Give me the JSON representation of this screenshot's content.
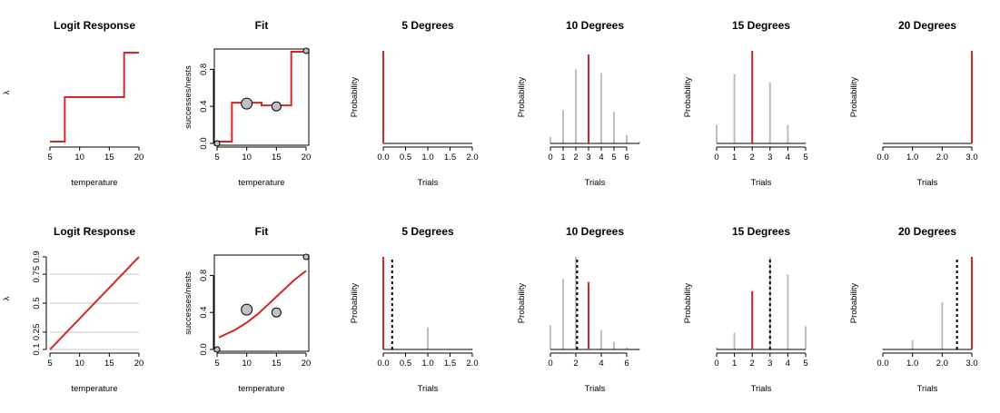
{
  "colors": {
    "highlight": "#d62728",
    "bars": "#bebebe",
    "point_fill": "#c0c0c0",
    "grid": "#c8c8c8",
    "axis": "#000000"
  },
  "chart_data": [
    {
      "type": "line",
      "variant": "step",
      "title": "Logit Response",
      "xlabel": "temperature",
      "ylabel": "",
      "stray_ylabel": "λ",
      "xlim": [
        5,
        20
      ],
      "ylim": [
        0,
        1
      ],
      "xticks": [
        "5",
        "10",
        "15",
        "20"
      ],
      "yticks": [],
      "x": [
        5,
        7.5,
        7.5,
        17.5,
        17.5,
        20
      ],
      "y": [
        0.02,
        0.02,
        0.5,
        0.5,
        0.98,
        0.98
      ]
    },
    {
      "type": "scatter",
      "variant": "fit-step",
      "title": "Fit",
      "xlabel": "temperature",
      "ylabel": "successes/nests",
      "xlim": [
        5,
        20
      ],
      "ylim": [
        0,
        1
      ],
      "xticks": [
        "5",
        "10",
        "15",
        "20"
      ],
      "yticks": [
        "0.0",
        "0.4",
        "0.8"
      ],
      "ytick_values": [
        0,
        0.4,
        0.8
      ],
      "points": [
        {
          "x": 5,
          "y": 0,
          "r": 3
        },
        {
          "x": 10,
          "y": 0.43,
          "r": 6
        },
        {
          "x": 15,
          "y": 0.4,
          "r": 5
        },
        {
          "x": 20,
          "y": 1,
          "r": 3
        }
      ],
      "line_x": [
        5,
        7.5,
        7.5,
        12.5,
        12.5,
        17.5,
        17.5,
        20
      ],
      "line_y": [
        0.02,
        0.02,
        0.44,
        0.44,
        0.41,
        0.41,
        0.99,
        0.99
      ]
    },
    {
      "type": "bar",
      "variant": "pmf",
      "title": "5 Degrees",
      "xlabel": "Trials",
      "ylabel": "Probability",
      "xlim": [
        0,
        2
      ],
      "ylim": [
        0,
        1
      ],
      "xticks": [
        "0.0",
        "0.5",
        "1.0",
        "1.5",
        "2.0"
      ],
      "xtick_values": [
        0,
        0.5,
        1,
        1.5,
        2
      ],
      "x": [],
      "values": [],
      "red_x": 0,
      "red_height": 1,
      "dashed_x": null
    },
    {
      "type": "bar",
      "variant": "pmf",
      "title": "10 Degrees",
      "xlabel": "Trials",
      "ylabel": "Probability",
      "xlim": [
        0,
        7
      ],
      "ylim": [
        0,
        1
      ],
      "xticks": [
        "0",
        "1",
        "2",
        "3",
        "4",
        "5",
        "6"
      ],
      "xtick_values": [
        0,
        1,
        2,
        3,
        4,
        5,
        6
      ],
      "x": [
        0,
        1,
        2,
        3,
        4,
        5,
        6,
        7
      ],
      "values": [
        0.07,
        0.36,
        0.8,
        0.96,
        0.76,
        0.34,
        0.09,
        0.02
      ],
      "red_x": 3,
      "red_height": 0.96,
      "dashed_x": null
    },
    {
      "type": "bar",
      "variant": "pmf",
      "title": "15 Degrees",
      "xlabel": "Trials",
      "ylabel": "Probability",
      "xlim": [
        0,
        5
      ],
      "ylim": [
        0,
        1
      ],
      "xticks": [
        "0",
        "1",
        "2",
        "3",
        "4",
        "5"
      ],
      "xtick_values": [
        0,
        1,
        2,
        3,
        4,
        5
      ],
      "x": [
        0,
        1,
        2,
        3,
        4,
        5
      ],
      "values": [
        0.2,
        0.75,
        1,
        0.66,
        0.2,
        0.01
      ],
      "red_x": 2,
      "red_height": 1,
      "dashed_x": null
    },
    {
      "type": "bar",
      "variant": "pmf",
      "title": "20 Degrees",
      "xlabel": "Trials",
      "ylabel": "Probability",
      "xlim": [
        0,
        3
      ],
      "ylim": [
        0,
        1
      ],
      "xticks": [
        "0.0",
        "1.0",
        "2.0",
        "3.0"
      ],
      "xtick_values": [
        0,
        1,
        2,
        3
      ],
      "x": [],
      "values": [],
      "red_x": 3,
      "red_height": 1,
      "dashed_x": null
    },
    {
      "type": "line",
      "variant": "linear",
      "title": "Logit Response",
      "xlabel": "temperature",
      "ylabel": "",
      "stray_ylabel": "λ",
      "xlim": [
        5,
        20
      ],
      "ylim": [
        0.1,
        0.9
      ],
      "xticks": [
        "5",
        "10",
        "15",
        "20"
      ],
      "yticks": [
        "0.1",
        "0.25",
        "0.5",
        "0.75",
        "0.9"
      ],
      "ytick_values": [
        0.1,
        0.25,
        0.5,
        0.75,
        0.9
      ],
      "ygrid": [
        0.1,
        0.25,
        0.5,
        0.75
      ],
      "x": [
        5,
        20
      ],
      "y": [
        0.1,
        0.9
      ]
    },
    {
      "type": "scatter",
      "variant": "fit-curve",
      "title": "Fit",
      "xlabel": "temperature",
      "ylabel": "successes/nests",
      "xlim": [
        5,
        20
      ],
      "ylim": [
        0,
        1
      ],
      "xticks": [
        "5",
        "10",
        "15",
        "20"
      ],
      "yticks": [
        "0.0",
        "0.4",
        "0.8"
      ],
      "ytick_values": [
        0,
        0.4,
        0.8
      ],
      "points": [
        {
          "x": 5,
          "y": 0,
          "r": 3
        },
        {
          "x": 10,
          "y": 0.43,
          "r": 6
        },
        {
          "x": 15,
          "y": 0.4,
          "r": 5
        },
        {
          "x": 20,
          "y": 1,
          "r": 3
        }
      ],
      "line_x": [
        5.3,
        6,
        7,
        8,
        9,
        10,
        11,
        12,
        13,
        14,
        15,
        16,
        17,
        18,
        19,
        20
      ],
      "line_y": [
        0.13,
        0.15,
        0.18,
        0.21,
        0.25,
        0.29,
        0.34,
        0.39,
        0.45,
        0.51,
        0.57,
        0.63,
        0.69,
        0.75,
        0.8,
        0.85
      ]
    },
    {
      "type": "bar",
      "variant": "pmf",
      "title": "5 Degrees",
      "xlabel": "Trials",
      "ylabel": "Probability",
      "xlim": [
        0,
        2
      ],
      "ylim": [
        0,
        1
      ],
      "xticks": [
        "0.0",
        "0.5",
        "1.0",
        "1.5",
        "2.0"
      ],
      "xtick_values": [
        0,
        0.5,
        1,
        1.5,
        2
      ],
      "x": [
        0,
        1,
        2
      ],
      "values": [
        0.02,
        0.24,
        0.01
      ],
      "red_x": 0,
      "red_height": 1,
      "dashed_x": 0.2
    },
    {
      "type": "bar",
      "variant": "pmf",
      "title": "10 Degrees",
      "xlabel": "Trials",
      "ylabel": "Probability",
      "xlim": [
        0,
        7
      ],
      "ylim": [
        0,
        1
      ],
      "xticks": [
        "0",
        "2",
        "4",
        "6"
      ],
      "xtick_values": [
        0,
        2,
        4,
        6
      ],
      "x": [
        0,
        1,
        2,
        3,
        4,
        5,
        6,
        7
      ],
      "values": [
        0.26,
        0.76,
        1,
        0.73,
        0.21,
        0.08,
        0.02,
        0.01
      ],
      "red_x": 3,
      "red_height": 0.73,
      "dashed_x": 2.1
    },
    {
      "type": "bar",
      "variant": "pmf",
      "title": "15 Degrees",
      "xlabel": "Trials",
      "ylabel": "Probability",
      "xlim": [
        0,
        5
      ],
      "ylim": [
        0,
        1
      ],
      "xticks": [
        "0",
        "1",
        "2",
        "3",
        "4",
        "5"
      ],
      "xtick_values": [
        0,
        1,
        2,
        3,
        4,
        5
      ],
      "x": [
        0,
        1,
        2,
        3,
        4,
        5
      ],
      "values": [
        0.02,
        0.18,
        0.63,
        1,
        0.81,
        0.25
      ],
      "red_x": 2,
      "red_height": 0.63,
      "dashed_x": 3
    },
    {
      "type": "bar",
      "variant": "pmf",
      "title": "20 Degrees",
      "xlabel": "Trials",
      "ylabel": "Probability",
      "xlim": [
        0,
        3
      ],
      "ylim": [
        0,
        1
      ],
      "xticks": [
        "0.0",
        "1.0",
        "2.0",
        "3.0"
      ],
      "xtick_values": [
        0,
        1,
        2,
        3
      ],
      "x": [
        0,
        1,
        2,
        3
      ],
      "values": [
        0.01,
        0.1,
        0.51,
        1
      ],
      "red_x": 3,
      "red_height": 1,
      "dashed_x": 2.5
    }
  ]
}
